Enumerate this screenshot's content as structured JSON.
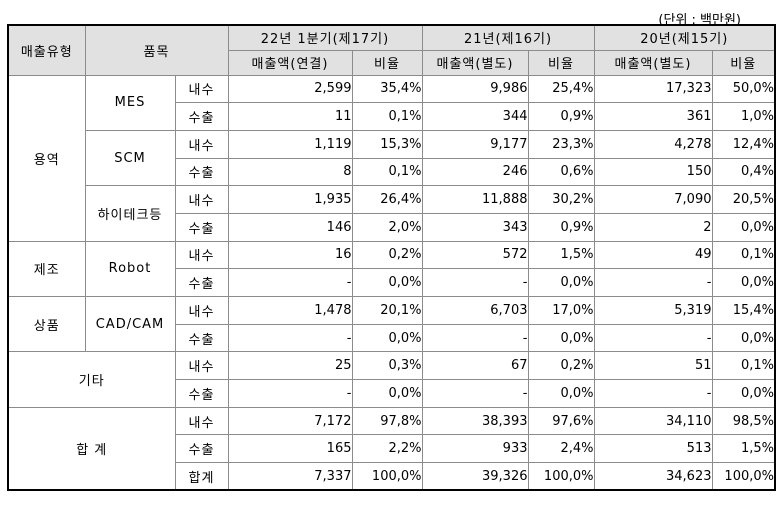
{
  "unit_label": "(단위 : 백만원)",
  "table": {
    "header": {
      "sales_type": "매출유형",
      "item": "품목",
      "periods": [
        {
          "label": "22년 1분기(제17기)",
          "amount_label": "매출액(연결)",
          "ratio_label": "비율"
        },
        {
          "label": "21년(제16기)",
          "amount_label": "매출액(별도)",
          "ratio_label": "비율"
        },
        {
          "label": "20년(제15기)",
          "amount_label": "매출액(별도)",
          "ratio_label": "비율"
        }
      ]
    },
    "rows": [
      {
        "cells": [
          {
            "text": "용역",
            "type": "group",
            "rowspan": 6
          },
          {
            "text": "MES",
            "type": "item",
            "rowspan": 2
          },
          {
            "text": "내수",
            "type": "channel"
          },
          {
            "text": "2,599",
            "type": "num"
          },
          {
            "text": "35,4%",
            "type": "num"
          },
          {
            "text": "9,986",
            "type": "num"
          },
          {
            "text": "25,4%",
            "type": "num"
          },
          {
            "text": "17,323",
            "type": "num"
          },
          {
            "text": "50,0%",
            "type": "num"
          }
        ]
      },
      {
        "cells": [
          {
            "text": "수출",
            "type": "channel"
          },
          {
            "text": "11",
            "type": "num"
          },
          {
            "text": "0,1%",
            "type": "num"
          },
          {
            "text": "344",
            "type": "num"
          },
          {
            "text": "0,9%",
            "type": "num"
          },
          {
            "text": "361",
            "type": "num"
          },
          {
            "text": "1,0%",
            "type": "num"
          }
        ]
      },
      {
        "cells": [
          {
            "text": "SCM",
            "type": "item",
            "rowspan": 2
          },
          {
            "text": "내수",
            "type": "channel"
          },
          {
            "text": "1,119",
            "type": "num"
          },
          {
            "text": "15,3%",
            "type": "num"
          },
          {
            "text": "9,177",
            "type": "num"
          },
          {
            "text": "23,3%",
            "type": "num"
          },
          {
            "text": "4,278",
            "type": "num"
          },
          {
            "text": "12,4%",
            "type": "num"
          }
        ]
      },
      {
        "cells": [
          {
            "text": "수출",
            "type": "channel"
          },
          {
            "text": "8",
            "type": "num"
          },
          {
            "text": "0,1%",
            "type": "num"
          },
          {
            "text": "246",
            "type": "num"
          },
          {
            "text": "0,6%",
            "type": "num"
          },
          {
            "text": "150",
            "type": "num"
          },
          {
            "text": "0,4%",
            "type": "num"
          }
        ]
      },
      {
        "cells": [
          {
            "text": "하이테크등",
            "type": "item",
            "rowspan": 2
          },
          {
            "text": "내수",
            "type": "channel"
          },
          {
            "text": "1,935",
            "type": "num"
          },
          {
            "text": "26,4%",
            "type": "num"
          },
          {
            "text": "11,888",
            "type": "num"
          },
          {
            "text": "30,2%",
            "type": "num"
          },
          {
            "text": "7,090",
            "type": "num"
          },
          {
            "text": "20,5%",
            "type": "num"
          }
        ]
      },
      {
        "cells": [
          {
            "text": "수출",
            "type": "channel"
          },
          {
            "text": "146",
            "type": "num"
          },
          {
            "text": "2,0%",
            "type": "num"
          },
          {
            "text": "343",
            "type": "num"
          },
          {
            "text": "0,9%",
            "type": "num"
          },
          {
            "text": "2",
            "type": "num"
          },
          {
            "text": "0,0%",
            "type": "num"
          }
        ]
      },
      {
        "cells": [
          {
            "text": "제조",
            "type": "group",
            "rowspan": 2
          },
          {
            "text": "Robot",
            "type": "item",
            "rowspan": 2
          },
          {
            "text": "내수",
            "type": "channel"
          },
          {
            "text": "16",
            "type": "num"
          },
          {
            "text": "0,2%",
            "type": "num"
          },
          {
            "text": "572",
            "type": "num"
          },
          {
            "text": "1,5%",
            "type": "num"
          },
          {
            "text": "49",
            "type": "num"
          },
          {
            "text": "0,1%",
            "type": "num"
          }
        ]
      },
      {
        "cells": [
          {
            "text": "수출",
            "type": "channel"
          },
          {
            "text": "-",
            "type": "num"
          },
          {
            "text": "0,0%",
            "type": "num"
          },
          {
            "text": "-",
            "type": "num"
          },
          {
            "text": "0,0%",
            "type": "num"
          },
          {
            "text": "-",
            "type": "num"
          },
          {
            "text": "0,0%",
            "type": "num"
          }
        ]
      },
      {
        "cells": [
          {
            "text": "상품",
            "type": "group",
            "rowspan": 2
          },
          {
            "text": "CAD/CAM",
            "type": "item",
            "rowspan": 2
          },
          {
            "text": "내수",
            "type": "channel"
          },
          {
            "text": "1,478",
            "type": "num"
          },
          {
            "text": "20,1%",
            "type": "num"
          },
          {
            "text": "6,703",
            "type": "num"
          },
          {
            "text": "17,0%",
            "type": "num"
          },
          {
            "text": "5,319",
            "type": "num"
          },
          {
            "text": "15,4%",
            "type": "num"
          }
        ]
      },
      {
        "cells": [
          {
            "text": "수출",
            "type": "channel"
          },
          {
            "text": "-",
            "type": "num"
          },
          {
            "text": "0,0%",
            "type": "num"
          },
          {
            "text": "-",
            "type": "num"
          },
          {
            "text": "0,0%",
            "type": "num"
          },
          {
            "text": "-",
            "type": "num"
          },
          {
            "text": "0,0%",
            "type": "num"
          }
        ]
      },
      {
        "cells": [
          {
            "text": "기타",
            "type": "group",
            "rowspan": 2,
            "colspan": 2
          },
          {
            "text": "내수",
            "type": "channel"
          },
          {
            "text": "25",
            "type": "num"
          },
          {
            "text": "0,3%",
            "type": "num"
          },
          {
            "text": "67",
            "type": "num"
          },
          {
            "text": "0,2%",
            "type": "num"
          },
          {
            "text": "51",
            "type": "num"
          },
          {
            "text": "0,1%",
            "type": "num"
          }
        ]
      },
      {
        "cells": [
          {
            "text": "수출",
            "type": "channel"
          },
          {
            "text": "-",
            "type": "num"
          },
          {
            "text": "0,0%",
            "type": "num"
          },
          {
            "text": "-",
            "type": "num"
          },
          {
            "text": "0,0%",
            "type": "num"
          },
          {
            "text": "-",
            "type": "num"
          },
          {
            "text": "0,0%",
            "type": "num"
          }
        ]
      },
      {
        "cells": [
          {
            "text": "합 계",
            "type": "group",
            "rowspan": 3,
            "colspan": 2
          },
          {
            "text": "내수",
            "type": "channel"
          },
          {
            "text": "7,172",
            "type": "num"
          },
          {
            "text": "97,8%",
            "type": "num"
          },
          {
            "text": "38,393",
            "type": "num"
          },
          {
            "text": "97,6%",
            "type": "num"
          },
          {
            "text": "34,110",
            "type": "num"
          },
          {
            "text": "98,5%",
            "type": "num"
          }
        ]
      },
      {
        "cells": [
          {
            "text": "수출",
            "type": "channel"
          },
          {
            "text": "165",
            "type": "num"
          },
          {
            "text": "2,2%",
            "type": "num"
          },
          {
            "text": "933",
            "type": "num"
          },
          {
            "text": "2,4%",
            "type": "num"
          },
          {
            "text": "513",
            "type": "num"
          },
          {
            "text": "1,5%",
            "type": "num"
          }
        ]
      },
      {
        "cells": [
          {
            "text": "합계",
            "type": "channel"
          },
          {
            "text": "7,337",
            "type": "num"
          },
          {
            "text": "100,0%",
            "type": "num"
          },
          {
            "text": "39,326",
            "type": "num"
          },
          {
            "text": "100,0%",
            "type": "num"
          },
          {
            "text": "34,623",
            "type": "num"
          },
          {
            "text": "100,0%",
            "type": "num"
          }
        ]
      }
    ]
  },
  "colors": {
    "header_bg": "#e1e1e1",
    "grid_line": "#8c8c8c",
    "outer_border": "#000000",
    "text": "#000000",
    "page_bg": "#ffffff"
  }
}
